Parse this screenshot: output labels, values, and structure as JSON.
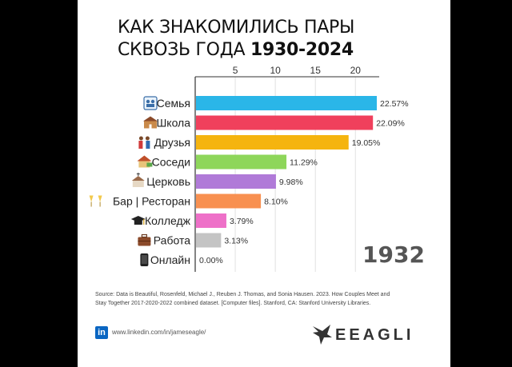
{
  "title_line1": "КАК ЗНАКОМИЛИСЬ ПАРЫ",
  "title_line2_prefix": "СКВОЗЬ ГОДА",
  "title_line2_years": "1930-2024",
  "year": "1932",
  "source": "Source: Data is Beautiful, Rosenfeld, Michael J., Reuben J. Thomas, and Sonia Hausen. 2023. How Couples Meet and Stay Together 2017-2020-2022 combined dataset. [Computer files]. Stanford, CA: Stanford University Libraries.",
  "linkedin_badge": "in",
  "linkedin_url": "www.linkedin.com/in/jameseagle/",
  "brand": "EEAGLI",
  "colors": {
    "Семья": "#2ab6e8",
    "Школа": "#f0405c",
    "Друзья": "#f5b40f",
    "Соседи": "#8ed65a",
    "Церковь": "#b07ad8",
    "Бар | Ресторан": "#f89050",
    "Колледж": "#ee70c8",
    "Работа": "#c4c4c4",
    "Онлайн": "#9a9a9a"
  },
  "chart_data": {
    "type": "bar",
    "orientation": "horizontal",
    "categories": [
      "Семья",
      "Школа",
      "Друзья",
      "Соседи",
      "Церковь",
      "Бар | Ресторан",
      "Колледж",
      "Работа",
      "Онлайн"
    ],
    "values": [
      22.57,
      22.09,
      19.05,
      11.29,
      9.98,
      8.1,
      3.79,
      3.13,
      0.0
    ],
    "value_labels": [
      "22.57%",
      "22.09%",
      "19.05%",
      "11.29%",
      "9.98%",
      "8.10%",
      "3.79%",
      "3.13%",
      "0.00%"
    ],
    "icons": [
      "family-icon",
      "school-icon",
      "friends-icon",
      "neighbors-icon",
      "church-icon",
      "bar-icon",
      "college-icon",
      "work-icon",
      "online-icon"
    ],
    "xticks": [
      5,
      10,
      15,
      20
    ],
    "xlim": [
      0,
      22.57
    ],
    "grid": true,
    "xlabel": "",
    "ylabel": ""
  }
}
